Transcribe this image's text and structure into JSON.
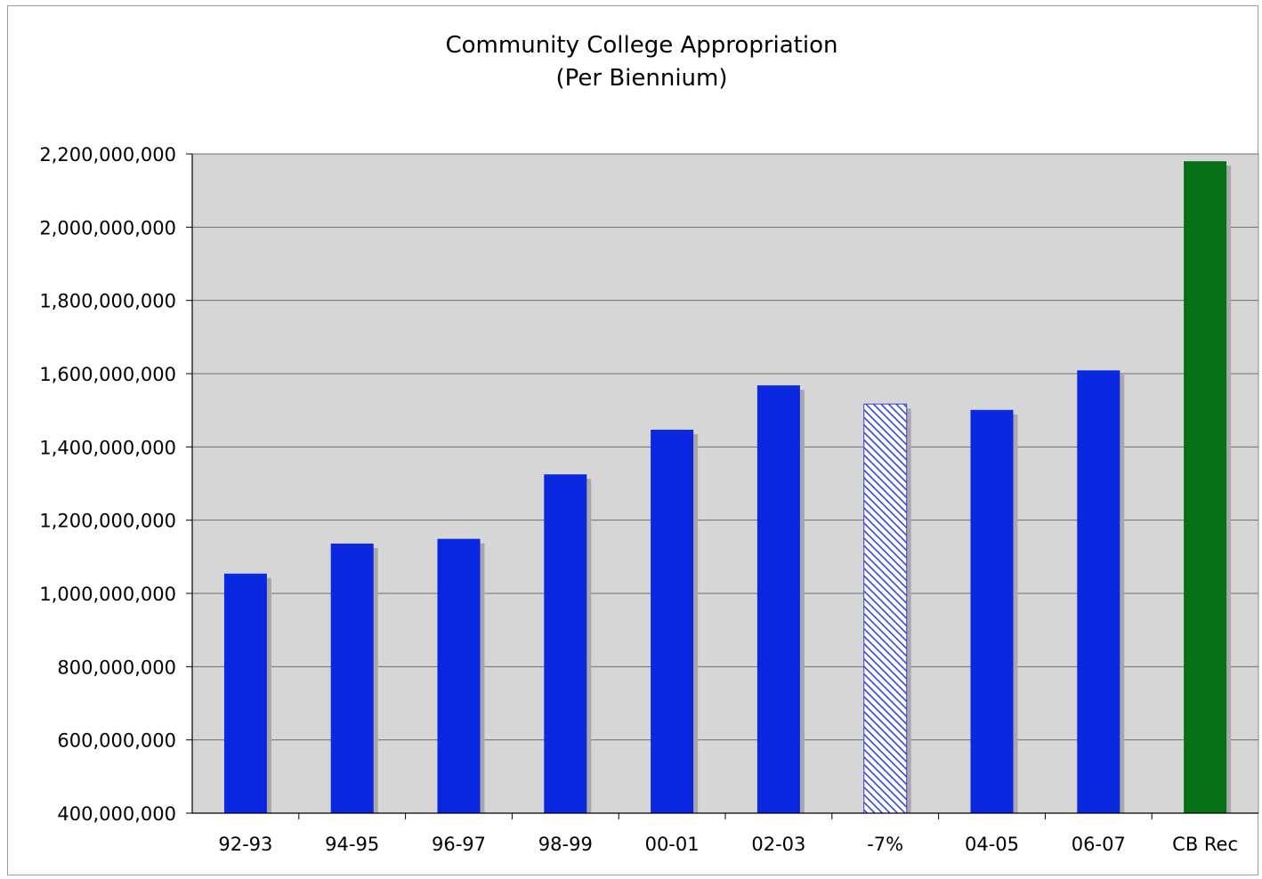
{
  "chart_data": {
    "type": "bar",
    "title": "Community College Appropriation",
    "subtitle": "(Per Biennium)",
    "xlabel": "",
    "ylabel": "",
    "categories": [
      "92-93",
      "94-95",
      "96-97",
      "98-99",
      "00-01",
      "02-03",
      "-7%",
      "04-05",
      "06-07",
      "CB Rec"
    ],
    "values": [
      1054000000,
      1136000000,
      1149000000,
      1325000000,
      1447000000,
      1568000000,
      1517000000,
      1501000000,
      1609000000,
      2180000000
    ],
    "bar_styles": [
      "solid",
      "solid",
      "solid",
      "solid",
      "solid",
      "solid",
      "hatched",
      "solid",
      "solid",
      "solid"
    ],
    "bar_colors": [
      "#0a28e0",
      "#0a28e0",
      "#0a28e0",
      "#0a28e0",
      "#0a28e0",
      "#0a28e0",
      "#3344dd",
      "#0a28e0",
      "#0a28e0",
      "#067016"
    ],
    "ylim": [
      400000000,
      2200000000
    ],
    "yticks": [
      400000000,
      600000000,
      800000000,
      1000000000,
      1200000000,
      1400000000,
      1600000000,
      1800000000,
      2000000000,
      2200000000
    ],
    "ytick_labels": [
      "400,000,000",
      "600,000,000",
      "800,000,000",
      "1,000,000,000",
      "1,200,000,000",
      "1,400,000,000",
      "1,600,000,000",
      "1,800,000,000",
      "2,000,000,000",
      "2,200,000,000"
    ],
    "grid": true,
    "legend": "none",
    "colors": {
      "plot_background": "#d6d6d6",
      "gridline": "#6e6e6e",
      "shadow": "#a8a8a8"
    }
  }
}
